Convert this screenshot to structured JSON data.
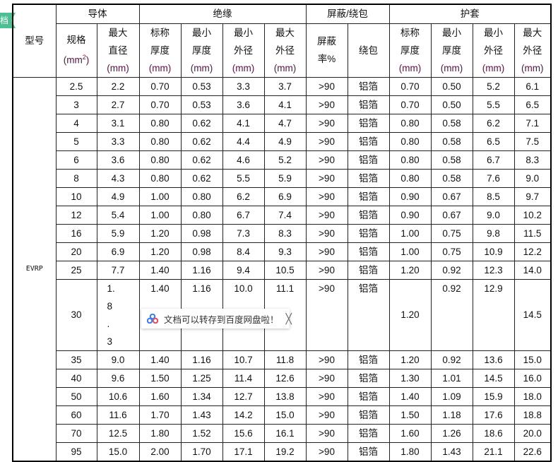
{
  "side_tab": {
    "label": "档",
    "color": "#4cbf94"
  },
  "header": {
    "model": "型号",
    "groups": [
      "导体",
      "绝缘",
      "屏蔽/绕包",
      "护套"
    ],
    "columns": [
      {
        "l1": "规格",
        "l2": "(mm",
        "sup": "2",
        ")": ")"
      },
      {
        "l1": "最大",
        "l2": "直径",
        "u": "(mm)"
      },
      {
        "l1": "标称",
        "l2": "厚度",
        "u": "(mm)"
      },
      {
        "l1": "最小",
        "l2": "厚度",
        "u": "(mm)"
      },
      {
        "l1": "最小",
        "l2": "外径",
        "u": "(mm)"
      },
      {
        "l1": "最大",
        "l2": "外径",
        "u": "(mm)"
      },
      {
        "l1": "屏蔽",
        "l2": "率%"
      },
      {
        "l1": "绕包"
      },
      {
        "l1": "标称",
        "l2": "厚度",
        "u": "(mm)"
      },
      {
        "l1": "最小",
        "l2": "厚度",
        "u": "(mm)"
      },
      {
        "l1": "最小",
        "l2": "外径",
        "u": "(mm)"
      },
      {
        "l1": "最大",
        "l2": "外径",
        "u": "(mm)"
      }
    ]
  },
  "model_value": "EVRP",
  "rows": [
    [
      "2.5",
      "2.2",
      "0.70",
      "0.53",
      "3.3",
      "3.7",
      ">90",
      "铝箔",
      "0.70",
      "0.50",
      "5.2",
      "6.1"
    ],
    [
      "3",
      "2.7",
      "0.70",
      "0.53",
      "3.6",
      "4.1",
      ">90",
      "铝箔",
      "0.70",
      "0.50",
      "5.5",
      "6.5"
    ],
    [
      "4",
      "3.1",
      "0.80",
      "0.62",
      "4.1",
      "4.7",
      ">90",
      "铝箔",
      "0.80",
      "0.58",
      "6.2",
      "7.1"
    ],
    [
      "5",
      "3.3",
      "0.80",
      "0.62",
      "4.4",
      "4.9",
      ">90",
      "铝箔",
      "0.80",
      "0.58",
      "6.5",
      "7.5"
    ],
    [
      "6",
      "3.6",
      "0.80",
      "0.62",
      "4.6",
      "5.2",
      ">90",
      "铝箔",
      "0.80",
      "0.58",
      "6.7",
      "8.3"
    ],
    [
      "8",
      "4.3",
      "0.80",
      "0.62",
      "5.5",
      "5.9",
      ">90",
      "铝箔",
      "0.80",
      "0.58",
      "7.6",
      "9.0"
    ],
    [
      "10",
      "4.9",
      "1.00",
      "0.80",
      "6.2",
      "6.9",
      ">90",
      "铝箔",
      "0.90",
      "0.67",
      "8.5",
      "9.7"
    ],
    [
      "12",
      "5.4",
      "1.00",
      "0.80",
      "6.7",
      "7.4",
      ">90",
      "铝箔",
      "0.90",
      "0.67",
      "9.0",
      "10.2"
    ],
    [
      "16",
      "5.9",
      "1.20",
      "0.98",
      "7.3",
      "8.3",
      ">90",
      "铝箔",
      "1.00",
      "0.75",
      "9.8",
      "11.5"
    ],
    [
      "20",
      "6.9",
      "1.20",
      "0.98",
      "8.4",
      "9.3",
      ">90",
      "铝箔",
      "1.00",
      "0.75",
      "10.9",
      "12.2"
    ],
    [
      "25",
      "7.7",
      "1.40",
      "1.16",
      "9.4",
      "10.5",
      ">90",
      "铝箔",
      "1.20",
      "0.92",
      "12.3",
      "14.0"
    ],
    [
      "30",
      "1. 8 . 3",
      "1.40",
      "1.16",
      "10.0",
      "11.1",
      ">90",
      "铝箔",
      "1.20",
      "0.92",
      "12.9",
      "14.5"
    ],
    [
      "35",
      "9.0",
      "1.40",
      "1.16",
      "10.7",
      "11.8",
      ">90",
      "铝箔",
      "1.20",
      "0.92",
      "13.6",
      "15.0"
    ],
    [
      "40",
      "9.6",
      "1.50",
      "1.25",
      "11.4",
      "12.6",
      ">90",
      "铝箔",
      "1.30",
      "1.01",
      "14.5",
      "16.0"
    ],
    [
      "50",
      "10.6",
      "1.60",
      "1.34",
      "12.7",
      "13.8",
      ">90",
      "铝箔",
      "1.40",
      "1.09",
      "15.9",
      "18.0"
    ],
    [
      "60",
      "11.6",
      "1.70",
      "1.43",
      "14.2",
      "15.0",
      ">90",
      "铝箔",
      "1.50",
      "1.18",
      "17.6",
      "18.8"
    ],
    [
      "70",
      "12.5",
      "1.80",
      "1.52",
      "15.6",
      "16.1",
      ">90",
      "铝箔",
      "1.60",
      "1.26",
      "18.6",
      "20.0"
    ],
    [
      "95",
      "15.0",
      "2.00",
      "1.70",
      "17.1",
      "19.2",
      ">90",
      "铝箔",
      "1.80",
      "1.43",
      "21.1",
      "22.6"
    ]
  ],
  "toast": {
    "text": "文档可以转存到百度网盘啦！",
    "close": "╳",
    "icon": "baidu-netdisk-icon"
  }
}
